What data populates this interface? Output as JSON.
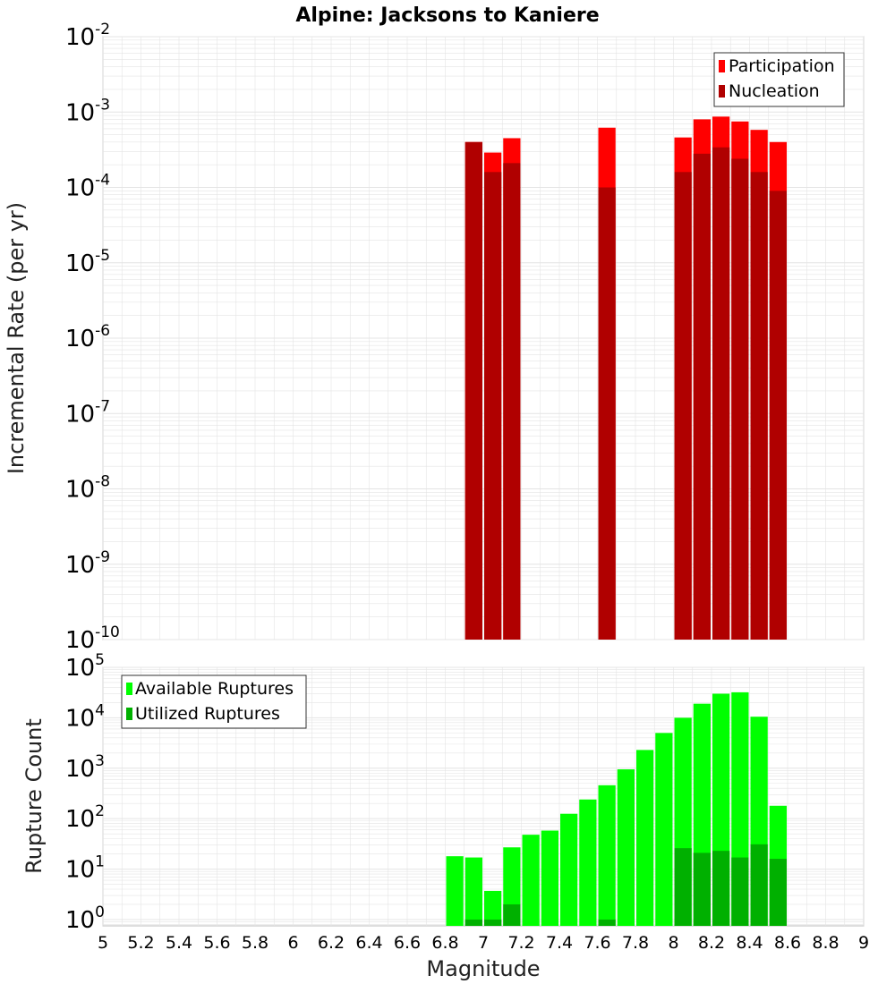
{
  "colors": {
    "participation": "#ff0000",
    "nucleation": "#b00000",
    "available": "#00ff00",
    "utilized": "#00b000",
    "grid": "#e4e4e4",
    "frame": "#bdbdbd"
  },
  "chart_data": [
    {
      "type": "bar",
      "title": "Alpine: Jacksons to Kaniere",
      "xlabel": "",
      "ylabel": "Incremental Rate (per yr)",
      "xlim": [
        5,
        9
      ],
      "ylim": [
        1e-10,
        0.01
      ],
      "y_scale": "log",
      "grid": true,
      "legend_position": "top-right",
      "bin_width": 0.1,
      "series": [
        {
          "name": "Participation",
          "x": [
            6.95,
            7.05,
            7.15,
            7.65,
            8.05,
            8.15,
            8.25,
            8.35,
            8.45,
            8.55
          ],
          "values": [
            0.0004,
            0.00029,
            0.00045,
            0.00062,
            0.00046,
            0.0008,
            0.00087,
            0.00075,
            0.00058,
            0.0004
          ]
        },
        {
          "name": "Nucleation",
          "x": [
            6.95,
            7.05,
            7.15,
            7.65,
            8.05,
            8.15,
            8.25,
            8.35,
            8.45,
            8.55
          ],
          "values": [
            0.0004,
            0.00016,
            0.00021,
            0.0001,
            0.00016,
            0.00028,
            0.00034,
            0.00024,
            0.00016,
            9e-05
          ]
        }
      ]
    },
    {
      "type": "bar",
      "title": "",
      "xlabel": "Magnitude",
      "ylabel": "Rupture Count",
      "xlim": [
        5,
        9
      ],
      "ylim": [
        0.75,
        100000.0
      ],
      "y_scale": "log",
      "grid": true,
      "legend_position": "top-left",
      "bin_width": 0.1,
      "x_ticks": [
        "5",
        "5.2",
        "5.4",
        "5.6",
        "5.8",
        "6",
        "6.2",
        "6.4",
        "6.6",
        "6.8",
        "7",
        "7.2",
        "7.4",
        "7.6",
        "7.8",
        "8",
        "8.2",
        "8.4",
        "8.6",
        "8.8",
        "9"
      ],
      "series": [
        {
          "name": "Available Ruptures",
          "x": [
            6.85,
            6.95,
            7.05,
            7.15,
            7.25,
            7.35,
            7.45,
            7.55,
            7.65,
            7.75,
            7.85,
            7.95,
            8.05,
            8.15,
            8.25,
            8.35,
            8.45,
            8.55
          ],
          "values": [
            18,
            17,
            3.7,
            27,
            48,
            58,
            125,
            240,
            460,
            950,
            2300,
            5000,
            10000,
            19000,
            30000,
            32000,
            10500,
            180
          ]
        },
        {
          "name": "Utilized Ruptures",
          "x": [
            6.95,
            7.05,
            7.15,
            7.65,
            8.05,
            8.15,
            8.25,
            8.35,
            8.45,
            8.55
          ],
          "values": [
            1,
            1,
            2,
            1,
            26,
            21,
            23,
            17,
            31,
            16
          ]
        }
      ]
    }
  ]
}
